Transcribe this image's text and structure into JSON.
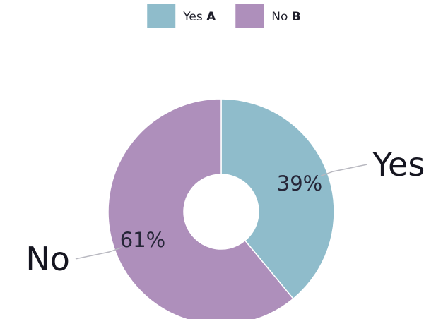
{
  "chart_data": {
    "type": "pie",
    "variant": "donut",
    "categories": [
      "Yes",
      "No"
    ],
    "values": [
      39,
      61
    ],
    "value_labels": [
      "39%",
      "61%"
    ],
    "legend": {
      "placement": "top-center",
      "entries": [
        {
          "label": "Yes",
          "key": "A"
        },
        {
          "label": "No",
          "key": "B"
        }
      ]
    },
    "colors": {
      "Yes": "#8fbccb",
      "No": "#ae8fbb",
      "leader_line": "#b8b8c0",
      "separator": "#ffffff"
    }
  }
}
